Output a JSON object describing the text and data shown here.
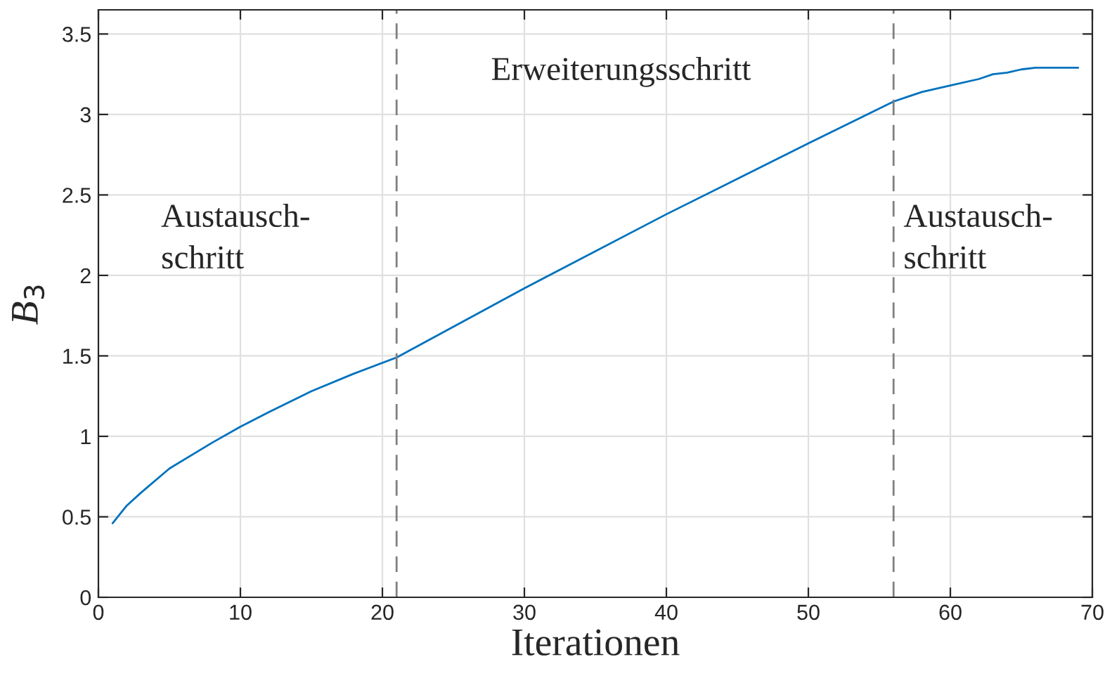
{
  "chart_data": {
    "type": "line",
    "xlabel": "Iterationen",
    "ylabel": "B$_{3}$",
    "x": [
      1,
      2,
      3,
      5,
      8,
      10,
      12,
      15,
      18,
      21,
      30,
      40,
      50,
      56,
      57,
      58,
      60,
      62,
      63,
      64,
      65,
      66,
      67,
      68,
      69
    ],
    "series": [
      {
        "color": "#0072bd",
        "values": [
          0.46,
          0.57,
          0.65,
          0.8,
          0.96,
          1.06,
          1.15,
          1.28,
          1.39,
          1.49,
          1.92,
          2.38,
          2.82,
          3.08,
          3.11,
          3.14,
          3.18,
          3.22,
          3.25,
          3.26,
          3.28,
          3.29,
          3.29,
          3.29,
          3.29
        ]
      }
    ],
    "xlim": [
      0,
      70
    ],
    "xticks": [
      0,
      10,
      20,
      30,
      40,
      50,
      60,
      70
    ],
    "ylim": [
      0,
      3.65
    ],
    "yticks": [
      0,
      0.5,
      1,
      1.5,
      2,
      2.5,
      3,
      3.5
    ],
    "grid": true,
    "line_style": "solid",
    "marker": "none",
    "ref_lines": [
      {
        "axis": "x",
        "value": 21,
        "color": "#7f7f7f",
        "line_style": "dashed"
      },
      {
        "axis": "x",
        "value": 56,
        "color": "#7f7f7f",
        "line_style": "dashed"
      }
    ],
    "annotations": [
      "Austausch-\nschritt",
      "Erweiterungsschritt",
      "Austausch-\nschritt"
    ]
  }
}
